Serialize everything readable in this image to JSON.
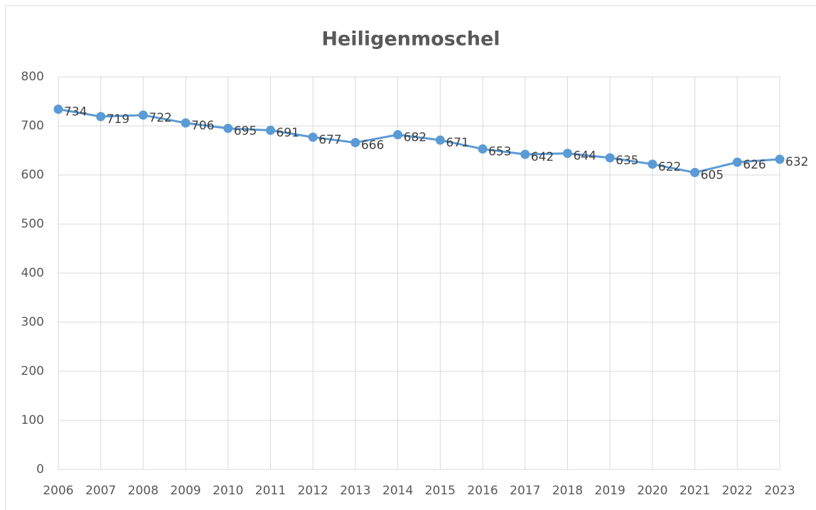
{
  "chart_data": {
    "type": "line",
    "title": "Heiligenmoschel",
    "x": [
      2006,
      2007,
      2008,
      2009,
      2010,
      2011,
      2012,
      2013,
      2014,
      2015,
      2016,
      2017,
      2018,
      2019,
      2020,
      2021,
      2022,
      2023
    ],
    "xlim": [
      2006,
      2023
    ],
    "series": [
      {
        "name": "Heiligenmoschel",
        "color": "#5b9bd5",
        "values": [
          734,
          719,
          722,
          706,
          695,
          691,
          677,
          666,
          682,
          671,
          653,
          642,
          644,
          635,
          622,
          605,
          626,
          632
        ]
      }
    ],
    "ylim": [
      0,
      800
    ],
    "yticks": [
      0,
      100,
      200,
      300,
      400,
      500,
      600,
      700,
      800
    ],
    "grid": true
  }
}
